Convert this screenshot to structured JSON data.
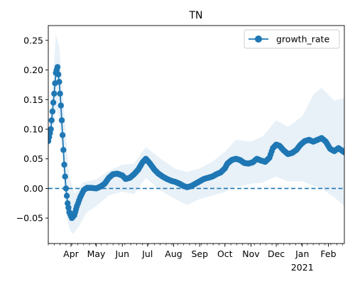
{
  "chart_data": {
    "type": "line",
    "title": "TN",
    "xlabel": "",
    "ylabel": "",
    "x_range": [
      "2020-03-05",
      "2021-02-20"
    ],
    "ylim": [
      -0.093,
      0.275
    ],
    "grid": false,
    "legend": {
      "placement": "top-right",
      "entries": [
        "growth_rate"
      ]
    },
    "colors": {
      "series": "#1f77b4",
      "band": "#1f77b4"
    },
    "x_ticks": [
      {
        "date": "2020-04-01",
        "label": "Apr"
      },
      {
        "date": "2020-05-01",
        "label": "May"
      },
      {
        "date": "2020-06-01",
        "label": "Jun"
      },
      {
        "date": "2020-07-01",
        "label": "Jul"
      },
      {
        "date": "2020-08-01",
        "label": "Aug"
      },
      {
        "date": "2020-09-01",
        "label": "Sep"
      },
      {
        "date": "2020-10-01",
        "label": "Oct"
      },
      {
        "date": "2020-11-01",
        "label": "Nov"
      },
      {
        "date": "2020-12-01",
        "label": "Dec"
      },
      {
        "date": "2021-01-01",
        "label": "Jan",
        "sublabel": "2021"
      },
      {
        "date": "2021-02-01",
        "label": "Feb"
      }
    ],
    "y_ticks": [
      -0.05,
      0.0,
      0.05,
      0.1,
      0.15,
      0.2,
      0.25
    ],
    "y_tick_labels": [
      "−0.05",
      "0.00",
      "0.05",
      "0.10",
      "0.15",
      "0.20",
      "0.25"
    ],
    "reference_line": {
      "y": 0.0,
      "style": "dashed"
    },
    "series": [
      {
        "name": "growth_rate",
        "points": [
          [
            "2020-03-05",
            0.08
          ],
          [
            "2020-03-08",
            0.1
          ],
          [
            "2020-03-10",
            0.13
          ],
          [
            "2020-03-12",
            0.16
          ],
          [
            "2020-03-14",
            0.195
          ],
          [
            "2020-03-16",
            0.205
          ],
          [
            "2020-03-18",
            0.18
          ],
          [
            "2020-03-20",
            0.14
          ],
          [
            "2020-03-22",
            0.09
          ],
          [
            "2020-03-24",
            0.04
          ],
          [
            "2020-03-26",
            0.0
          ],
          [
            "2020-03-28",
            -0.025
          ],
          [
            "2020-03-30",
            -0.04
          ],
          [
            "2020-04-02",
            -0.05
          ],
          [
            "2020-04-05",
            -0.045
          ],
          [
            "2020-04-08",
            -0.03
          ],
          [
            "2020-04-12",
            -0.015
          ],
          [
            "2020-04-16",
            -0.003
          ],
          [
            "2020-04-20",
            0.001
          ],
          [
            "2020-04-25",
            0.001
          ],
          [
            "2020-05-01",
            0.0
          ],
          [
            "2020-05-06",
            0.003
          ],
          [
            "2020-05-11",
            0.008
          ],
          [
            "2020-05-16",
            0.018
          ],
          [
            "2020-05-21",
            0.024
          ],
          [
            "2020-05-26",
            0.025
          ],
          [
            "2020-06-01",
            0.022
          ],
          [
            "2020-06-05",
            0.016
          ],
          [
            "2020-06-10",
            0.018
          ],
          [
            "2020-06-15",
            0.024
          ],
          [
            "2020-06-20",
            0.032
          ],
          [
            "2020-06-25",
            0.044
          ],
          [
            "2020-06-29",
            0.05
          ],
          [
            "2020-07-04",
            0.042
          ],
          [
            "2020-07-09",
            0.032
          ],
          [
            "2020-07-14",
            0.025
          ],
          [
            "2020-07-19",
            0.02
          ],
          [
            "2020-07-24",
            0.016
          ],
          [
            "2020-07-29",
            0.013
          ],
          [
            "2020-08-03",
            0.011
          ],
          [
            "2020-08-08",
            0.008
          ],
          [
            "2020-08-13",
            0.004
          ],
          [
            "2020-08-17",
            0.002
          ],
          [
            "2020-08-22",
            0.004
          ],
          [
            "2020-08-27",
            0.008
          ],
          [
            "2020-09-01",
            0.012
          ],
          [
            "2020-09-06",
            0.016
          ],
          [
            "2020-09-11",
            0.018
          ],
          [
            "2020-09-16",
            0.02
          ],
          [
            "2020-09-21",
            0.024
          ],
          [
            "2020-09-26",
            0.027
          ],
          [
            "2020-10-01",
            0.034
          ],
          [
            "2020-10-04",
            0.042
          ],
          [
            "2020-10-09",
            0.048
          ],
          [
            "2020-10-14",
            0.05
          ],
          [
            "2020-10-19",
            0.048
          ],
          [
            "2020-10-24",
            0.043
          ],
          [
            "2020-10-29",
            0.042
          ],
          [
            "2020-11-03",
            0.044
          ],
          [
            "2020-11-08",
            0.05
          ],
          [
            "2020-11-13",
            0.047
          ],
          [
            "2020-11-18",
            0.045
          ],
          [
            "2020-11-23",
            0.052
          ],
          [
            "2020-11-27",
            0.068
          ],
          [
            "2020-12-01",
            0.074
          ],
          [
            "2020-12-05",
            0.072
          ],
          [
            "2020-12-10",
            0.064
          ],
          [
            "2020-12-15",
            0.058
          ],
          [
            "2020-12-20",
            0.06
          ],
          [
            "2020-12-25",
            0.065
          ],
          [
            "2020-12-30",
            0.074
          ],
          [
            "2021-01-04",
            0.08
          ],
          [
            "2021-01-09",
            0.082
          ],
          [
            "2021-01-14",
            0.079
          ],
          [
            "2021-01-19",
            0.082
          ],
          [
            "2021-01-24",
            0.085
          ],
          [
            "2021-01-29",
            0.079
          ],
          [
            "2021-02-03",
            0.067
          ],
          [
            "2021-02-08",
            0.063
          ],
          [
            "2021-02-13",
            0.068
          ],
          [
            "2021-02-17",
            0.064
          ],
          [
            "2021-02-20",
            0.061
          ]
        ],
        "band_upper": [
          [
            "2020-03-05",
            0.09
          ],
          [
            "2020-03-10",
            0.17
          ],
          [
            "2020-03-14",
            0.26
          ],
          [
            "2020-03-18",
            0.24
          ],
          [
            "2020-03-22",
            0.17
          ],
          [
            "2020-03-26",
            0.09
          ],
          [
            "2020-03-30",
            0.02
          ],
          [
            "2020-04-05",
            -0.01
          ],
          [
            "2020-04-15",
            0.01
          ],
          [
            "2020-05-01",
            0.015
          ],
          [
            "2020-05-16",
            0.03
          ],
          [
            "2020-06-01",
            0.04
          ],
          [
            "2020-06-15",
            0.042
          ],
          [
            "2020-06-29",
            0.07
          ],
          [
            "2020-07-15",
            0.052
          ],
          [
            "2020-08-03",
            0.033
          ],
          [
            "2020-08-17",
            0.028
          ],
          [
            "2020-09-01",
            0.034
          ],
          [
            "2020-09-16",
            0.045
          ],
          [
            "2020-10-01",
            0.062
          ],
          [
            "2020-10-14",
            0.082
          ],
          [
            "2020-11-01",
            0.079
          ],
          [
            "2020-11-15",
            0.088
          ],
          [
            "2020-12-01",
            0.115
          ],
          [
            "2020-12-15",
            0.104
          ],
          [
            "2021-01-01",
            0.122
          ],
          [
            "2021-01-15",
            0.16
          ],
          [
            "2021-01-24",
            0.17
          ],
          [
            "2021-02-08",
            0.148
          ],
          [
            "2021-02-20",
            0.153
          ]
        ],
        "band_lower": [
          [
            "2020-03-05",
            0.07
          ],
          [
            "2020-03-10",
            0.09
          ],
          [
            "2020-03-14",
            0.135
          ],
          [
            "2020-03-18",
            0.12
          ],
          [
            "2020-03-22",
            0.04
          ],
          [
            "2020-03-26",
            -0.04
          ],
          [
            "2020-03-30",
            -0.068
          ],
          [
            "2020-04-03",
            -0.077
          ],
          [
            "2020-04-10",
            -0.065
          ],
          [
            "2020-04-20",
            -0.04
          ],
          [
            "2020-05-01",
            -0.03
          ],
          [
            "2020-05-16",
            -0.012
          ],
          [
            "2020-06-01",
            -0.005
          ],
          [
            "2020-06-15",
            -0.01
          ],
          [
            "2020-06-29",
            0.018
          ],
          [
            "2020-07-15",
            -0.002
          ],
          [
            "2020-08-03",
            -0.018
          ],
          [
            "2020-08-17",
            -0.028
          ],
          [
            "2020-09-01",
            -0.018
          ],
          [
            "2020-09-16",
            -0.012
          ],
          [
            "2020-10-01",
            -0.006
          ],
          [
            "2020-10-14",
            0.003
          ],
          [
            "2020-11-01",
            0.008
          ],
          [
            "2020-11-15",
            0.01
          ],
          [
            "2020-12-01",
            0.02
          ],
          [
            "2020-12-15",
            0.012
          ],
          [
            "2021-01-01",
            0.012
          ],
          [
            "2021-01-15",
            0.004
          ],
          [
            "2021-01-24",
            0.0
          ],
          [
            "2021-02-08",
            -0.015
          ],
          [
            "2021-02-20",
            -0.03
          ]
        ]
      }
    ]
  }
}
